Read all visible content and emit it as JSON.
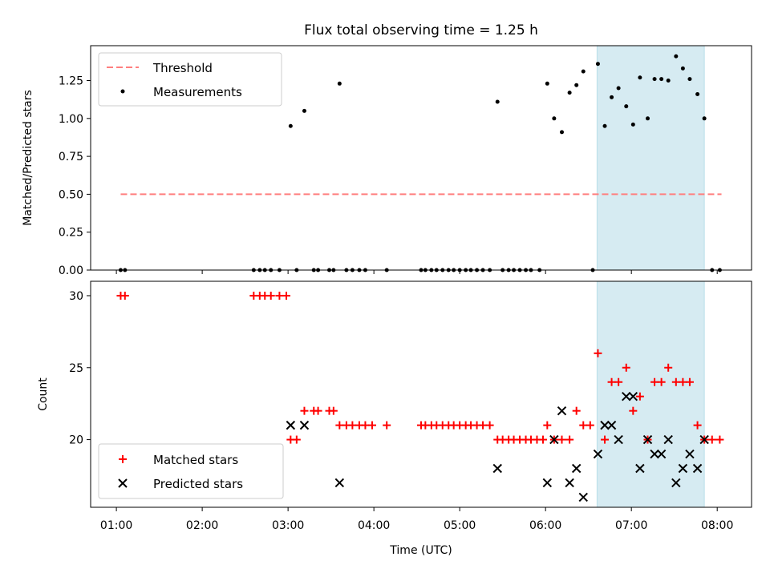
{
  "title": "Flux total observing time = 1.25 h",
  "colors": {
    "shade": "#add8e6",
    "threshold": "#ff7f7f",
    "matched": "#ff0000",
    "predicted": "#000000",
    "measurement": "#000000"
  },
  "xaxis": {
    "label": "Time (UTC)",
    "range_hours": [
      0.7,
      8.4
    ],
    "ticks": [
      {
        "value": 1,
        "label": "01:00"
      },
      {
        "value": 2,
        "label": "02:00"
      },
      {
        "value": 3,
        "label": "03:00"
      },
      {
        "value": 4,
        "label": "04:00"
      },
      {
        "value": 5,
        "label": "05:00"
      },
      {
        "value": 6,
        "label": "06:00"
      },
      {
        "value": 7,
        "label": "07:00"
      },
      {
        "value": 8,
        "label": "08:00"
      }
    ]
  },
  "chart_data": [
    {
      "type": "scatter",
      "panel": "top",
      "ylabel": "Matched/Predicted stars",
      "ylim": [
        0,
        1.48
      ],
      "yticks": [
        {
          "value": 0,
          "label": "0.00"
        },
        {
          "value": 0.25,
          "label": "0.25"
        },
        {
          "value": 0.5,
          "label": "0.50"
        },
        {
          "value": 0.75,
          "label": "0.75"
        },
        {
          "value": 1.0,
          "label": "1.00"
        },
        {
          "value": 1.25,
          "label": "1.25"
        }
      ],
      "shaded_span": [
        6.6,
        7.85
      ],
      "legend": {
        "placement": "top-left",
        "entries": [
          "Threshold",
          "Measurements"
        ]
      },
      "threshold": {
        "name": "Threshold",
        "y": 0.5,
        "x": [
          1.05,
          8.05
        ]
      },
      "measurements": {
        "name": "Measurements",
        "points": [
          [
            1.05,
            0
          ],
          [
            1.1,
            0
          ],
          [
            2.6,
            0
          ],
          [
            2.67,
            0
          ],
          [
            2.73,
            0
          ],
          [
            2.8,
            0
          ],
          [
            2.9,
            0
          ],
          [
            3.03,
            0.95
          ],
          [
            3.1,
            0
          ],
          [
            3.19,
            1.05
          ],
          [
            3.3,
            0
          ],
          [
            3.35,
            0
          ],
          [
            3.48,
            0
          ],
          [
            3.6,
            1.23
          ],
          [
            3.53,
            0
          ],
          [
            3.68,
            0
          ],
          [
            3.75,
            0
          ],
          [
            3.83,
            0
          ],
          [
            3.9,
            0
          ],
          [
            4.15,
            0
          ],
          [
            4.55,
            0
          ],
          [
            4.6,
            0
          ],
          [
            4.67,
            0
          ],
          [
            4.73,
            0
          ],
          [
            4.8,
            0
          ],
          [
            4.87,
            0
          ],
          [
            4.93,
            0
          ],
          [
            5.0,
            0
          ],
          [
            5.07,
            0
          ],
          [
            5.13,
            0
          ],
          [
            5.2,
            0
          ],
          [
            5.27,
            0
          ],
          [
            5.35,
            0
          ],
          [
            5.44,
            1.11
          ],
          [
            5.5,
            0
          ],
          [
            5.57,
            0
          ],
          [
            5.63,
            0
          ],
          [
            5.7,
            0
          ],
          [
            5.77,
            0
          ],
          [
            5.83,
            0
          ],
          [
            5.93,
            0
          ],
          [
            6.02,
            1.23
          ],
          [
            6.1,
            1.0
          ],
          [
            6.19,
            0.91
          ],
          [
            6.28,
            1.17
          ],
          [
            6.36,
            1.22
          ],
          [
            6.44,
            1.31
          ],
          [
            6.55,
            0
          ],
          [
            6.61,
            1.36
          ],
          [
            6.69,
            0.95
          ],
          [
            6.77,
            1.14
          ],
          [
            6.85,
            1.2
          ],
          [
            6.94,
            1.08
          ],
          [
            7.02,
            0.96
          ],
          [
            7.1,
            1.27
          ],
          [
            7.19,
            1.0
          ],
          [
            7.27,
            1.26
          ],
          [
            7.35,
            1.26
          ],
          [
            7.43,
            1.25
          ],
          [
            7.52,
            1.41
          ],
          [
            7.6,
            1.33
          ],
          [
            7.68,
            1.26
          ],
          [
            7.77,
            1.16
          ],
          [
            7.85,
            1.0
          ],
          [
            7.94,
            0
          ],
          [
            8.03,
            0
          ]
        ]
      }
    },
    {
      "type": "scatter",
      "panel": "bottom",
      "ylabel": "Count",
      "ylim": [
        15.3,
        31.0
      ],
      "yticks": [
        {
          "value": 20,
          "label": "20"
        },
        {
          "value": 25,
          "label": "25"
        },
        {
          "value": 30,
          "label": "30"
        }
      ],
      "shaded_span": [
        6.6,
        7.85
      ],
      "legend": {
        "placement": "bottom-left",
        "entries": [
          "Matched stars",
          "Predicted stars"
        ]
      },
      "series": [
        {
          "name": "Matched stars",
          "marker": "plus",
          "points": [
            [
              1.05,
              30
            ],
            [
              1.1,
              30
            ],
            [
              2.6,
              30
            ],
            [
              2.67,
              30
            ],
            [
              2.73,
              30
            ],
            [
              2.8,
              30
            ],
            [
              2.9,
              30
            ],
            [
              2.98,
              30
            ],
            [
              3.03,
              20
            ],
            [
              3.1,
              20
            ],
            [
              3.19,
              22
            ],
            [
              3.3,
              22
            ],
            [
              3.35,
              22
            ],
            [
              3.48,
              22
            ],
            [
              3.53,
              22
            ],
            [
              3.6,
              21
            ],
            [
              3.68,
              21
            ],
            [
              3.75,
              21
            ],
            [
              3.83,
              21
            ],
            [
              3.9,
              21
            ],
            [
              3.98,
              21
            ],
            [
              4.15,
              21
            ],
            [
              4.55,
              21
            ],
            [
              4.6,
              21
            ],
            [
              4.67,
              21
            ],
            [
              4.73,
              21
            ],
            [
              4.8,
              21
            ],
            [
              4.87,
              21
            ],
            [
              4.93,
              21
            ],
            [
              5.0,
              21
            ],
            [
              5.07,
              21
            ],
            [
              5.13,
              21
            ],
            [
              5.2,
              21
            ],
            [
              5.27,
              21
            ],
            [
              5.35,
              21
            ],
            [
              5.44,
              20
            ],
            [
              5.5,
              20
            ],
            [
              5.57,
              20
            ],
            [
              5.63,
              20
            ],
            [
              5.7,
              20
            ],
            [
              5.77,
              20
            ],
            [
              5.83,
              20
            ],
            [
              5.9,
              20
            ],
            [
              5.97,
              20
            ],
            [
              6.02,
              21
            ],
            [
              6.1,
              20
            ],
            [
              6.19,
              20
            ],
            [
              6.28,
              20
            ],
            [
              6.36,
              22
            ],
            [
              6.44,
              21
            ],
            [
              6.52,
              21
            ],
            [
              6.61,
              26
            ],
            [
              6.69,
              20
            ],
            [
              6.77,
              24
            ],
            [
              6.85,
              24
            ],
            [
              6.94,
              25
            ],
            [
              7.02,
              22
            ],
            [
              7.1,
              23
            ],
            [
              7.19,
              20
            ],
            [
              7.27,
              24
            ],
            [
              7.35,
              24
            ],
            [
              7.43,
              25
            ],
            [
              7.52,
              24
            ],
            [
              7.6,
              24
            ],
            [
              7.68,
              24
            ],
            [
              7.77,
              21
            ],
            [
              7.85,
              20
            ],
            [
              7.94,
              20
            ],
            [
              8.03,
              20
            ]
          ]
        },
        {
          "name": "Predicted stars",
          "marker": "x",
          "points": [
            [
              3.03,
              21
            ],
            [
              3.19,
              21
            ],
            [
              3.6,
              17
            ],
            [
              5.44,
              18
            ],
            [
              6.02,
              17
            ],
            [
              6.1,
              20
            ],
            [
              6.19,
              22
            ],
            [
              6.28,
              17
            ],
            [
              6.36,
              18
            ],
            [
              6.44,
              16
            ],
            [
              6.61,
              19
            ],
            [
              6.69,
              21
            ],
            [
              6.77,
              21
            ],
            [
              6.85,
              20
            ],
            [
              6.94,
              23
            ],
            [
              7.02,
              23
            ],
            [
              7.1,
              18
            ],
            [
              7.19,
              20
            ],
            [
              7.27,
              19
            ],
            [
              7.35,
              19
            ],
            [
              7.43,
              20
            ],
            [
              7.52,
              17
            ],
            [
              7.6,
              18
            ],
            [
              7.68,
              19
            ],
            [
              7.77,
              18
            ],
            [
              7.85,
              20
            ]
          ]
        }
      ]
    }
  ]
}
